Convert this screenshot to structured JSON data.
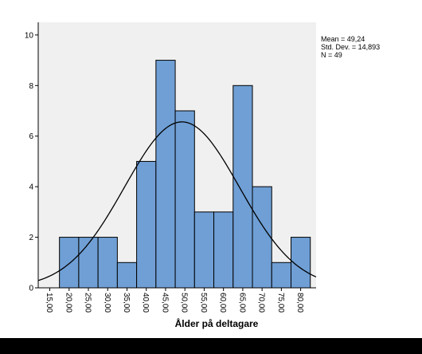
{
  "chart_data": {
    "type": "bar",
    "subtype": "histogram-with-normal-curve",
    "xlabel": "Ålder på deltagare",
    "ylabel": "",
    "x_tick_labels": [
      "15,00",
      "20,00",
      "25,00",
      "30,00",
      "35,00",
      "40,00",
      "45,00",
      "50,00",
      "55,00",
      "60,00",
      "65,00",
      "70,00",
      "75,00",
      "80,00"
    ],
    "y_tick_labels": [
      "0",
      "2",
      "4",
      "6",
      "8",
      "10"
    ],
    "xlim": [
      12,
      84
    ],
    "ylim": [
      0,
      10.5
    ],
    "bin_width": 5,
    "bins": [
      {
        "start": 17.5,
        "end": 22.5,
        "count": 2
      },
      {
        "start": 22.5,
        "end": 27.5,
        "count": 2
      },
      {
        "start": 27.5,
        "end": 32.5,
        "count": 2
      },
      {
        "start": 32.5,
        "end": 37.5,
        "count": 1
      },
      {
        "start": 37.5,
        "end": 42.5,
        "count": 5
      },
      {
        "start": 42.5,
        "end": 47.5,
        "count": 9
      },
      {
        "start": 47.5,
        "end": 52.5,
        "count": 7
      },
      {
        "start": 52.5,
        "end": 57.5,
        "count": 3
      },
      {
        "start": 57.5,
        "end": 62.5,
        "count": 3
      },
      {
        "start": 62.5,
        "end": 67.5,
        "count": 8
      },
      {
        "start": 67.5,
        "end": 72.5,
        "count": 4
      },
      {
        "start": 72.5,
        "end": 77.5,
        "count": 1
      },
      {
        "start": 77.5,
        "end": 82.5,
        "count": 2
      }
    ],
    "normal_curve": {
      "mean": 49.24,
      "sd": 14.893,
      "n": 49
    },
    "stats_lines": [
      "Mean = 49,24",
      "Std. Dev. = 14,893",
      "N = 49"
    ],
    "bar_color": "#6f9fd5",
    "bar_edge_color": "#000000",
    "plot_background": "#f0f0f0",
    "curve_color": "#000000",
    "grid": false
  }
}
